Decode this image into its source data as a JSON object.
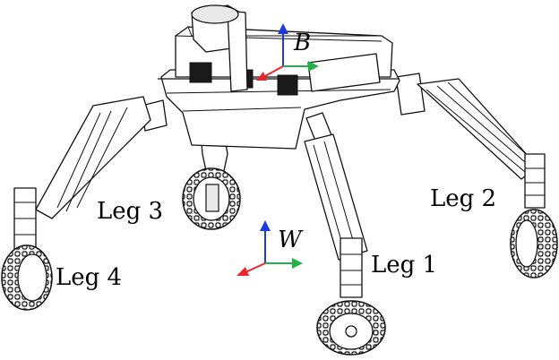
{
  "labels": {
    "leg1": "Leg 1",
    "leg2": "Leg 2",
    "leg3": "Leg 3",
    "leg4": "Leg 4",
    "world_frame": "W",
    "body_frame": "B"
  },
  "colors": {
    "axis_x": "#e8262c",
    "axis_y": "#21b34a",
    "axis_z": "#1f3bd6"
  }
}
